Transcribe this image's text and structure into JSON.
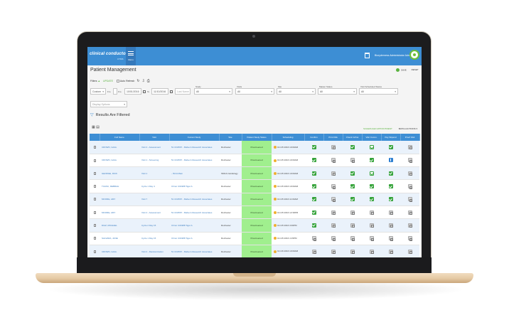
{
  "header": {
    "logo": "clinical conductor",
    "logo_sub": "CTMS",
    "menu_label": "Menu",
    "user": "Bioryderness Administrator Admf"
  },
  "page": {
    "title": "Patient Management",
    "save": "SAVE",
    "reset": "RESET"
  },
  "filters": {
    "label": "Filters",
    "update": "UPDATE",
    "auto_refresh": "Auto Refresh",
    "range": "Custom",
    "from_label": "Fro",
    "from_date": "10/01/2016",
    "to_label": "To",
    "to_date": "11/10/2016",
    "last_name_placeholder": "Last Name",
    "study_label": "Study",
    "study_value": "All",
    "visits_label": "Visits",
    "visits_value": "All",
    "site_label": "Site",
    "site_value": "All",
    "master_status_label": "Master Status",
    "master_status_value": "All",
    "visit_scheduled_label": "Visit Scheduled Status",
    "visit_scheduled_value": "All",
    "display_options": "Display Options",
    "results": "Results Are Filtered"
  },
  "actions": {
    "schedule": "SCHEDULED APPOINTMENT",
    "batch": "BATCH ACTIONS"
  },
  "columns": [
    "",
    "Full Name",
    "Visit",
    "Current Study",
    "Site",
    "Patient Study Status",
    "Scheduling",
    "Confirm",
    "Print Kills",
    "Check In/Out",
    "Visit Comm.",
    "Pay Stipend",
    "Proof Visit"
  ],
  "rows": [
    {
      "name": "CROWN, GAAL",
      "visit": "Visit 4 - Assessment",
      "study": "51 CD4567 - Malvern Research Associates",
      "site": "Rochester",
      "status": "Prescreened",
      "sched": "Oct 25 2016 10:00AM",
      "icons": [
        "ok",
        "gray",
        "ok",
        "open",
        "ok",
        "gray"
      ]
    },
    {
      "name": "CROWN, GAAL",
      "visit": "Visit 1 - Screening",
      "study": "51 CD4567 - Malvern Research Associates",
      "site": "Rochester",
      "status": "Prescreened",
      "sched": "Oct 25 2016 10:00AM",
      "icons": [
        "ok",
        "gray",
        "gray",
        "ok",
        "info",
        "gray"
      ]
    },
    {
      "name": "GEORGE, RICK",
      "visit": "Visit 1",
      "study": "- ISCA Main",
      "site": "SMCA Cardiology",
      "status": "Prescreened",
      "sched": "Oct 25 2016 10:00AM",
      "icons": [
        "ok",
        "gray",
        "ok",
        "open",
        "ok",
        "gray"
      ]
    },
    {
      "name": "TUASC, DEBRAH",
      "visit": "Cycle 1 Day 4",
      "study": "Chron C01988 Tiger A",
      "site": "Rochester",
      "status": "Prescreened",
      "sched": "Oct 25 2016 10:00AM",
      "icons": [
        "ok",
        "gray",
        "ok",
        "ok",
        "ok",
        "gray"
      ]
    },
    {
      "name": "MOORE, AMY",
      "visit": "Visit 7",
      "study": "51 CD4567 - Malvern Research Associates",
      "site": "Rochester",
      "status": "Prescreened",
      "sched": "Oct 25 2016 11:00AM",
      "icons": [
        "ok",
        "gray",
        "ok",
        "ok",
        "ok",
        "gray"
      ]
    },
    {
      "name": "MOORE, AMY",
      "visit": "Visit 4 - Assessment",
      "study": "51 CD4567 - Malvern Research Associates",
      "site": "Rochester",
      "status": "Prescreened",
      "sched": "Oct 25 2016 12:30PM",
      "icons": [
        "ok",
        "gray",
        "gray",
        "gray",
        "gray",
        "gray"
      ]
    },
    {
      "name": "DIAZ, MICHAEL",
      "visit": "Cycle 2 Day 15",
      "study": "Chron C01988 Tiger A",
      "site": "Rochester",
      "status": "Prescreened",
      "sched": "Oct 25 2016 3:00PM",
      "icons": [
        "ok",
        "gray",
        "gray",
        "gray",
        "gray",
        "gray"
      ]
    },
    {
      "name": "SALVARA, JANE",
      "visit": "Cycle 1 Day 15",
      "study": "Chron C01988 Tiger A",
      "site": "Rochester",
      "status": "Prescreened",
      "sched": "Oct 25 2016 4:15PM",
      "icons": [
        "gray",
        "gray",
        "gray",
        "gray",
        "gray",
        "gray"
      ]
    },
    {
      "name": "CROWN, GAAL",
      "visit": "Visit 2 - Randomization",
      "study": "51 CD4567 - Malvern Research Associates",
      "site": "Rochester",
      "status": "Prescreened",
      "sched": "Oct 26 2016 10:00AM",
      "icons": [
        "gray",
        "gray",
        "gray",
        "gray",
        "gray",
        "gray"
      ]
    }
  ]
}
